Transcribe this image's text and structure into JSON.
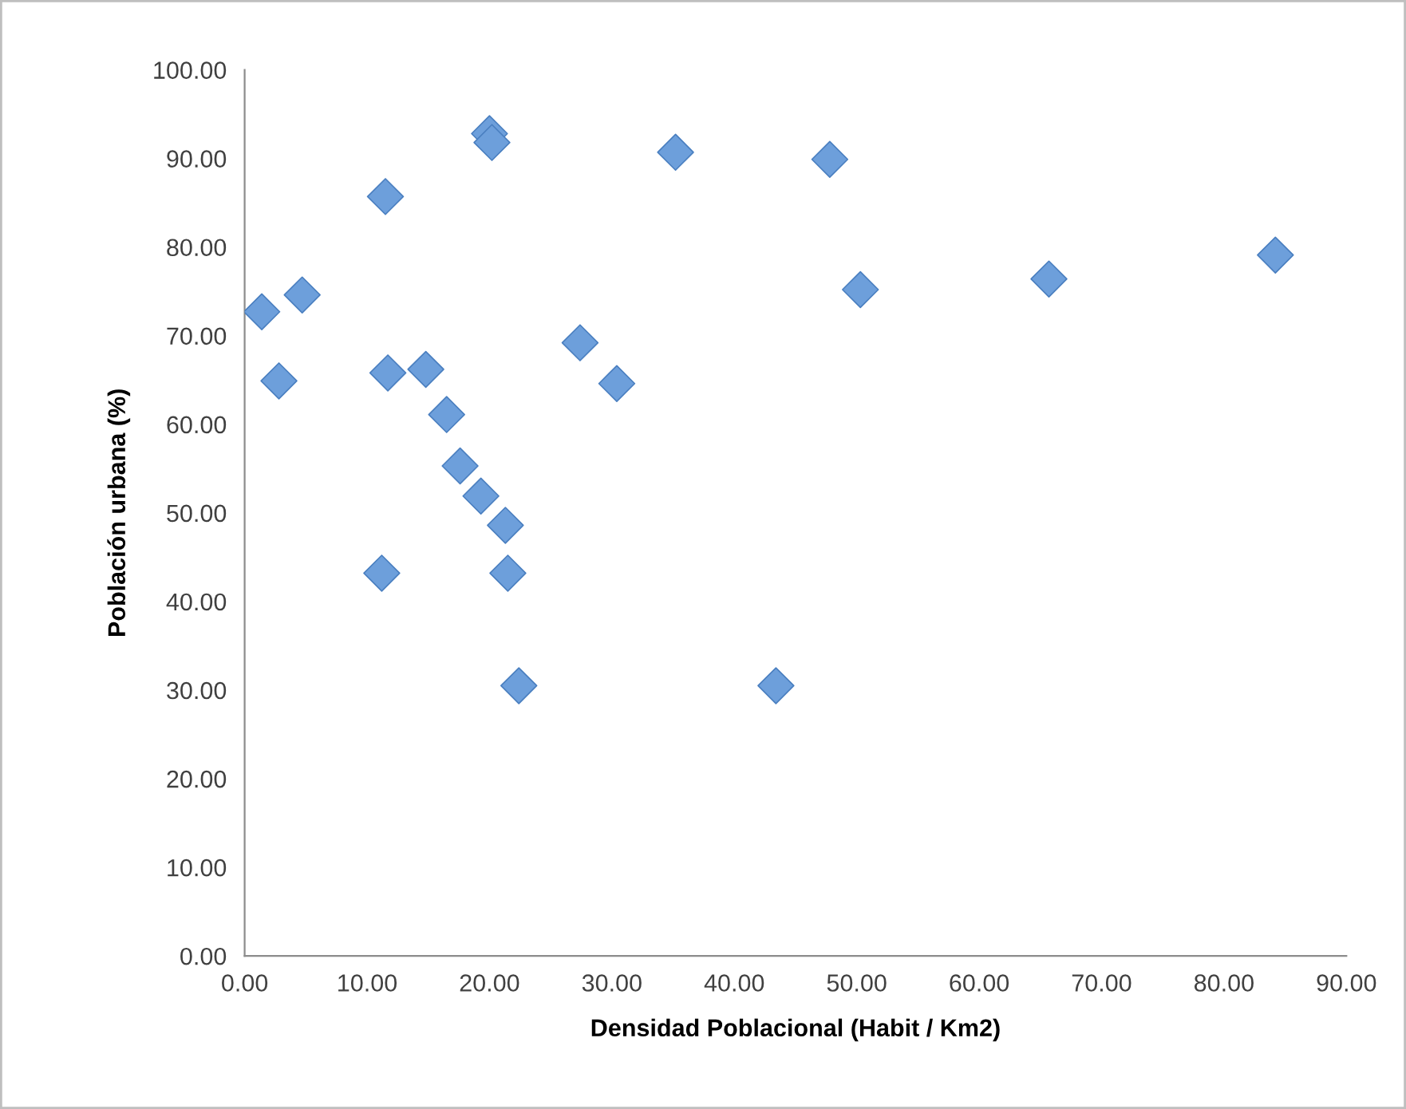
{
  "chart_data": {
    "type": "scatter",
    "xlabel": "Densidad Poblacional (Habit / Km2)",
    "ylabel": "Población urbana (%)",
    "x": [
      1.4,
      4.7,
      2.8,
      11.5,
      11.7,
      14.8,
      16.5,
      17.6,
      19.3,
      20.0,
      20.2,
      35.2,
      27.4,
      30.4,
      21.3,
      11.2,
      21.5,
      22.4,
      43.4,
      47.8,
      50.3,
      65.7,
      84.2
    ],
    "series": [
      {
        "color": "#6d9fdb",
        "values": [
          72.7,
          74.6,
          64.9,
          85.7,
          65.8,
          66.2,
          61.1,
          55.3,
          51.9,
          92.8,
          91.8,
          90.7,
          69.2,
          64.6,
          48.6,
          43.2,
          43.2,
          30.5,
          30.5,
          89.9,
          75.2,
          76.4,
          79.1
        ]
      }
    ],
    "marker": "diamond",
    "grid": false,
    "xlim": [
      0,
      90
    ],
    "ylim": [
      0,
      100
    ],
    "xticks": [
      {
        "value": 0,
        "label": "0.00"
      },
      {
        "value": 10,
        "label": "10.00"
      },
      {
        "value": 20,
        "label": "20.00"
      },
      {
        "value": 30,
        "label": "30.00"
      },
      {
        "value": 40,
        "label": "40.00"
      },
      {
        "value": 50,
        "label": "50.00"
      },
      {
        "value": 60,
        "label": "60.00"
      },
      {
        "value": 70,
        "label": "70.00"
      },
      {
        "value": 80,
        "label": "80.00"
      },
      {
        "value": 90,
        "label": "90.00"
      }
    ],
    "yticks": [
      {
        "value": 0,
        "label": "0.00"
      },
      {
        "value": 10,
        "label": "10.00"
      },
      {
        "value": 20,
        "label": "20.00"
      },
      {
        "value": 30,
        "label": "30.00"
      },
      {
        "value": 40,
        "label": "40.00"
      },
      {
        "value": 50,
        "label": "50.00"
      },
      {
        "value": 60,
        "label": "60.00"
      },
      {
        "value": 70,
        "label": "70.00"
      },
      {
        "value": 80,
        "label": "80.00"
      },
      {
        "value": 90,
        "label": "90.00"
      },
      {
        "value": 100,
        "label": "100.00"
      }
    ]
  }
}
